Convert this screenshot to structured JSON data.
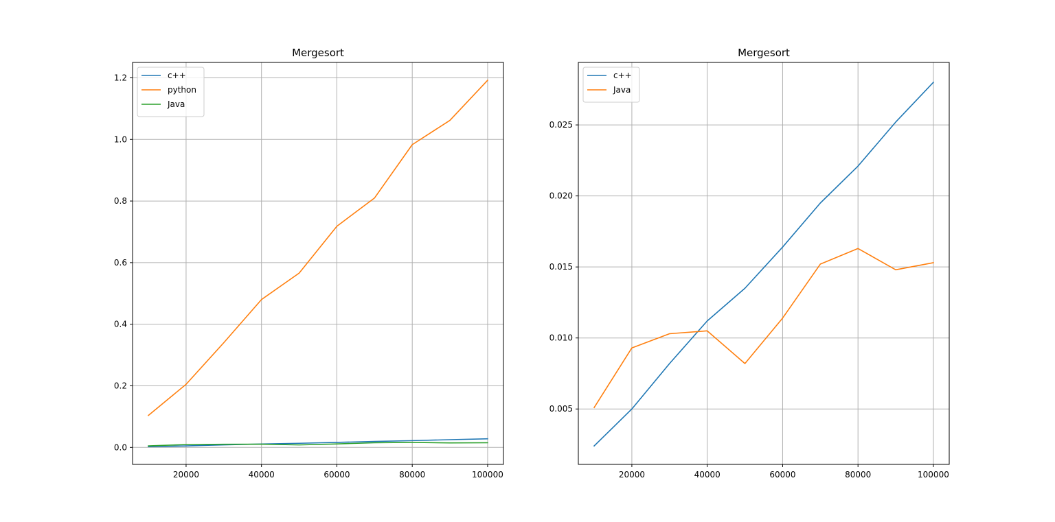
{
  "chart_data": [
    {
      "type": "line",
      "title": "Mergesort",
      "xlabel": "",
      "ylabel": "",
      "x": [
        10000,
        20000,
        30000,
        40000,
        50000,
        60000,
        70000,
        80000,
        90000,
        100000
      ],
      "xlim": [
        5800,
        104200
      ],
      "ylim": [
        -0.055,
        1.25
      ],
      "xticks": [
        20000,
        40000,
        60000,
        80000,
        100000
      ],
      "xtick_labels": [
        "20000",
        "40000",
        "60000",
        "80000",
        "100000"
      ],
      "yticks": [
        0.0,
        0.2,
        0.4,
        0.6,
        0.8,
        1.0,
        1.2
      ],
      "ytick_labels": [
        "0.0",
        "0.2",
        "0.4",
        "0.6",
        "0.8",
        "1.0",
        "1.2"
      ],
      "grid": true,
      "legend": "upper-left",
      "series": [
        {
          "name": "c++",
          "color": "#1f77b4",
          "values": [
            0.0024,
            0.005,
            0.0082,
            0.0112,
            0.0135,
            0.0164,
            0.0195,
            0.0221,
            0.0252,
            0.028
          ]
        },
        {
          "name": "python",
          "color": "#ff7f0e",
          "values": [
            0.104,
            0.205,
            0.34,
            0.48,
            0.566,
            0.718,
            0.81,
            0.983,
            1.062,
            1.192
          ]
        },
        {
          "name": "Java",
          "color": "#2ca02c",
          "values": [
            0.0051,
            0.0093,
            0.0103,
            0.0105,
            0.0082,
            0.0114,
            0.0152,
            0.0163,
            0.0148,
            0.0153
          ]
        }
      ]
    },
    {
      "type": "line",
      "title": "Mergesort",
      "xlabel": "",
      "ylabel": "",
      "x": [
        10000,
        20000,
        30000,
        40000,
        50000,
        60000,
        70000,
        80000,
        90000,
        100000
      ],
      "xlim": [
        5800,
        104200
      ],
      "ylim": [
        0.0011,
        0.0294
      ],
      "xticks": [
        20000,
        40000,
        60000,
        80000,
        100000
      ],
      "xtick_labels": [
        "20000",
        "40000",
        "60000",
        "80000",
        "100000"
      ],
      "yticks": [
        0.005,
        0.01,
        0.015,
        0.02,
        0.025
      ],
      "ytick_labels": [
        "0.005",
        "0.010",
        "0.015",
        "0.020",
        "0.025"
      ],
      "grid": true,
      "legend": "upper-left",
      "series": [
        {
          "name": "c++",
          "color": "#1f77b4",
          "values": [
            0.0024,
            0.005,
            0.0082,
            0.0112,
            0.0135,
            0.0164,
            0.0195,
            0.0221,
            0.0252,
            0.028
          ]
        },
        {
          "name": "Java",
          "color": "#ff7f0e",
          "values": [
            0.0051,
            0.0093,
            0.0103,
            0.0105,
            0.0082,
            0.0114,
            0.0152,
            0.0163,
            0.0148,
            0.0153
          ]
        }
      ]
    }
  ]
}
